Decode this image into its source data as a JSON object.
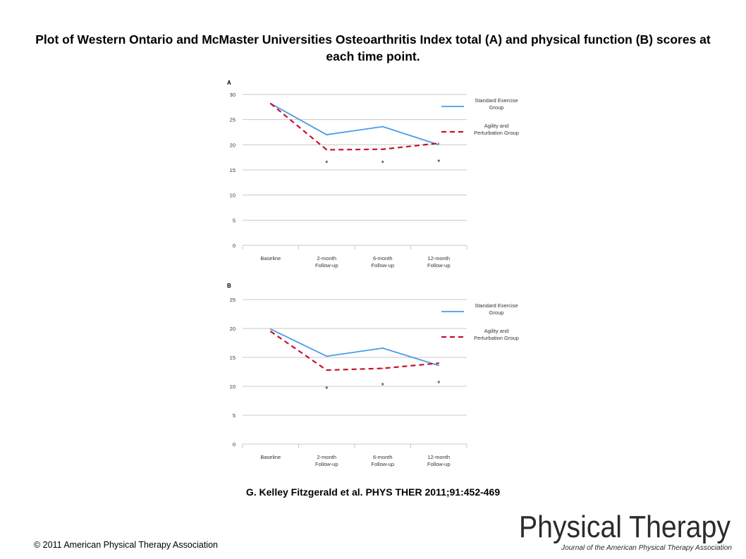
{
  "slide": {
    "title": "Plot of Western Ontario and McMaster Universities Osteoarthritis Index total (A) and physical function (B) scores at each time point.",
    "citation": "G. Kelley Fitzgerald et al. PHYS THER 2011;91:452-469",
    "copyright": "© 2011 American Physical Therapy Association",
    "logo": {
      "main": "PhysicalTherapy",
      "sub": "Journal of the American Physical Therapy Association"
    }
  },
  "colors": {
    "standard": "#4a9be8",
    "agility": "#c8102e",
    "grid": "#c8c8c8",
    "axis_text": "#333333"
  },
  "chart_data": [
    {
      "type": "line",
      "panel_label": "A",
      "categories": [
        "Baseline",
        "2-month Follow-up",
        "6-month Follow-up",
        "12-month Follow-up"
      ],
      "ylim": [
        0,
        30
      ],
      "yticks": [
        0,
        5,
        10,
        15,
        20,
        25,
        30
      ],
      "grid": true,
      "legend_position": "right",
      "series": [
        {
          "name": "Standard Exercise Group",
          "values": [
            28.2,
            22.0,
            23.6,
            20.0
          ],
          "style": "solid"
        },
        {
          "name": "Agility and Perturbation Group",
          "values": [
            28.2,
            19.0,
            19.1,
            20.3
          ],
          "style": "dashed"
        }
      ],
      "annotations": [
        {
          "category": "2-month Follow-up",
          "text": "*",
          "y": 16.7
        },
        {
          "category": "6-month Follow-up",
          "text": "*",
          "y": 16.7
        },
        {
          "category": "12-month Follow-up",
          "text": "*",
          "y": 16.9
        }
      ]
    },
    {
      "type": "line",
      "panel_label": "B",
      "categories": [
        "Baseline",
        "2-month Follow-up",
        "6-month Follow-up",
        "12-month Follow-up"
      ],
      "ylim": [
        0,
        25
      ],
      "yticks": [
        0,
        5,
        10,
        15,
        20,
        25
      ],
      "grid": true,
      "legend_position": "right",
      "series": [
        {
          "name": "Standard Exercise Group",
          "values": [
            19.9,
            15.2,
            16.6,
            13.6
          ],
          "style": "solid"
        },
        {
          "name": "Agility and Perturbation Group",
          "values": [
            19.5,
            12.8,
            13.1,
            14.0
          ],
          "style": "dashed"
        }
      ],
      "annotations": [
        {
          "category": "2-month Follow-up",
          "text": "*",
          "y": 9.8
        },
        {
          "category": "6-month Follow-up",
          "text": "*",
          "y": 10.4
        },
        {
          "category": "12-month Follow-up",
          "text": "*",
          "y": 10.8
        }
      ]
    }
  ]
}
